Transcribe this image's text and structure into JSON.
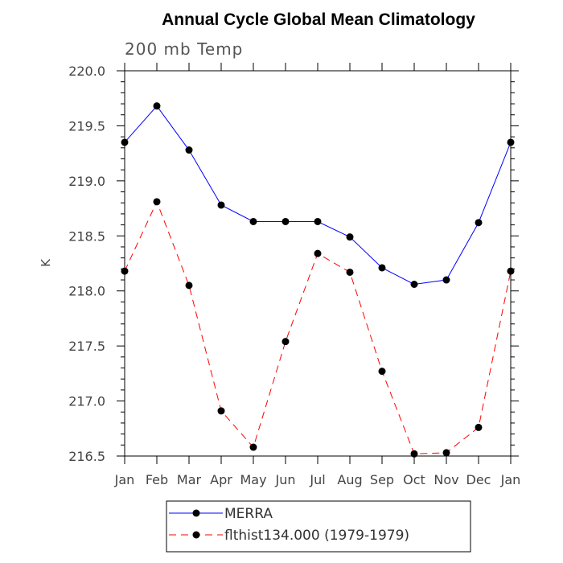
{
  "chart_data": {
    "type": "line",
    "title": "Annual Cycle Global Mean Climatology",
    "subtitle": "200 mb Temp",
    "ylabel": "K",
    "xlabel": "",
    "categories": [
      "Jan",
      "Feb",
      "Mar",
      "Apr",
      "May",
      "Jun",
      "Jul",
      "Aug",
      "Sep",
      "Oct",
      "Nov",
      "Dec",
      "Jan"
    ],
    "ylim": [
      216.5,
      220.0
    ],
    "yticks": [
      "216.5",
      "217.0",
      "217.5",
      "218.0",
      "218.5",
      "219.0",
      "219.5",
      "220.0"
    ],
    "series": [
      {
        "name": "MERRA",
        "color": "#0000ff",
        "style": "solid",
        "values": [
          219.35,
          219.68,
          219.28,
          218.78,
          218.63,
          218.63,
          218.63,
          218.49,
          218.21,
          218.06,
          218.1,
          218.62,
          219.35
        ]
      },
      {
        "name": "flthist134.000 (1979-1979)",
        "color": "#ff0000",
        "style": "dashed",
        "values": [
          218.18,
          218.81,
          218.05,
          216.91,
          216.58,
          217.54,
          218.34,
          218.17,
          217.27,
          216.52,
          216.53,
          216.76,
          218.18
        ]
      }
    ],
    "grid": false,
    "legend_position": "bottom"
  }
}
